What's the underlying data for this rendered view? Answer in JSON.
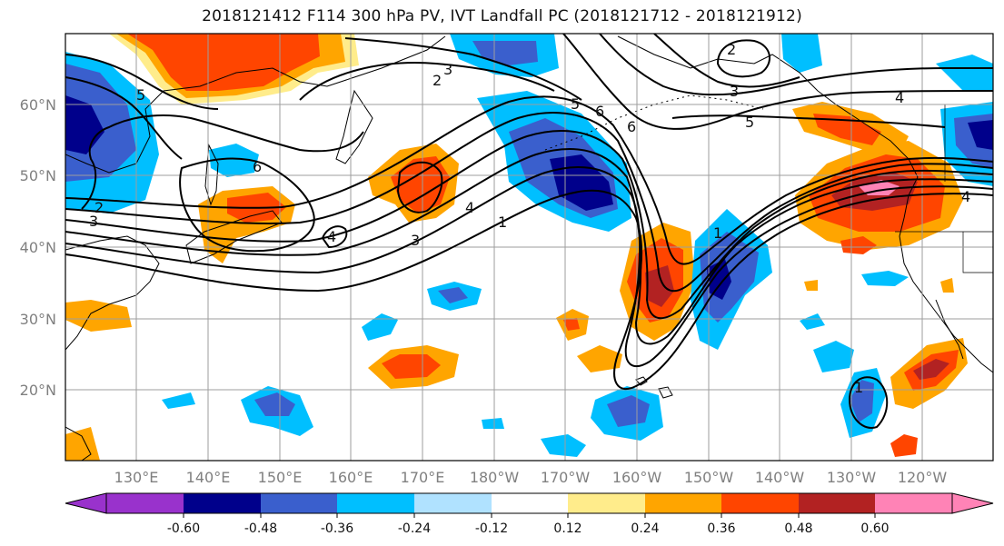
{
  "title": "2018121412 F114 300 hPa PV, IVT Landfall PC (2018121712 - 2018121912)",
  "map": {
    "lat_ticks": [
      "60°N",
      "50°N",
      "40°N",
      "30°N",
      "20°N"
    ],
    "lon_ticks": [
      "130°E",
      "140°E",
      "150°E",
      "160°E",
      "170°E",
      "180°W",
      "170°W",
      "160°W",
      "150°W",
      "140°W",
      "130°W",
      "120°W"
    ],
    "contour_labels": [
      "2",
      "3",
      "2",
      "6",
      "4",
      "4",
      "5",
      "6",
      "3",
      "5",
      "2",
      "3",
      "6",
      "3",
      "4",
      "1",
      "1",
      "5",
      "4",
      "1"
    ],
    "colors": {
      "coast": "#000000",
      "grid": "#9e9e9e",
      "contour": "#000000"
    }
  },
  "colorbar": {
    "levels": [
      "-0.60",
      "-0.48",
      "-0.36",
      "-0.24",
      "-0.12",
      "0.12",
      "0.24",
      "0.36",
      "0.48",
      "0.60"
    ],
    "colors": [
      "#9932cc",
      "#00008b",
      "#3a5fcd",
      "#00bfff",
      "#b0e2ff",
      "#ffffff",
      "#ffec8b",
      "#ffa500",
      "#ff4500",
      "#b22222",
      "#ff83b6"
    ]
  }
}
